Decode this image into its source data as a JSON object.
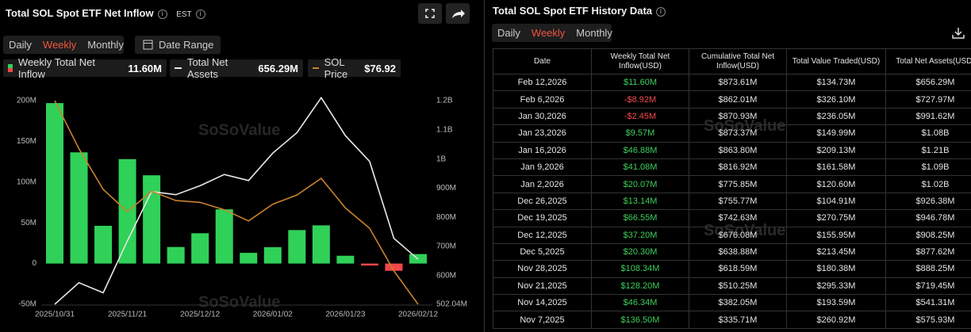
{
  "header": {
    "title": "Total SOL Spot ETF Net Inflow",
    "timezone": "EST",
    "tabs": [
      "Daily",
      "Weekly",
      "Monthly"
    ],
    "active_tab": 1,
    "date_range": "Date Range",
    "legend_values": [
      "11.60M",
      "656.29M",
      "$76.92"
    ]
  },
  "watermark": "SoSoValue",
  "chart_data": {
    "type": "bar",
    "categories": [
      "2025/10/31",
      null,
      null,
      "2025/11/21",
      null,
      null,
      "2025/12/12",
      null,
      null,
      "2026/01/02",
      null,
      null,
      "2026/01/23",
      null,
      null,
      "2026/02/12"
    ],
    "series": [
      {
        "name": "Weekly Total Net Inflow",
        "type": "bar",
        "color": "#30d158",
        "negative_color": "#f0474a",
        "values": [
          197,
          136.5,
          46.34,
          128.2,
          108.34,
          20.3,
          37.2,
          66.55,
          13.14,
          20.07,
          41.08,
          46.88,
          9.57,
          -2.45,
          -8.92,
          11.6
        ]
      },
      {
        "name": "Total Net Assets",
        "type": "line",
        "axis": "y2",
        "color": "#e8e8e8",
        "values": [
          502.04,
          575.93,
          541.31,
          719.45,
          888.25,
          877.62,
          908.25,
          946.78,
          926.38,
          1020,
          1090,
          1210,
          1080,
          991.62,
          727.97,
          656.29
        ]
      },
      {
        "name": "SOL Price",
        "type": "line",
        "axis": "none",
        "color": "#c8832c",
        "values": [
          187,
          161,
          139,
          127,
          138,
          133,
          132,
          128,
          122,
          131,
          136,
          145,
          129,
          118,
          95,
          76.92
        ]
      }
    ],
    "ylim": [
      -50,
      200
    ],
    "yticks": [
      {
        "value": 200,
        "label": "200M"
      },
      {
        "value": 150,
        "label": "150M"
      },
      {
        "value": 100,
        "label": "100M"
      },
      {
        "value": 50,
        "label": "50M"
      },
      0,
      {
        "value": -50,
        "label": "-50M"
      }
    ],
    "y2lim": [
      502.04,
      1200
    ],
    "y2ticks": [
      {
        "value": 1200,
        "label": "1.2B"
      },
      {
        "value": 1100,
        "label": "1.1B"
      },
      {
        "value": 1000,
        "label": "1B"
      },
      {
        "value": 900,
        "label": "900M"
      },
      {
        "value": 800,
        "label": "800M"
      },
      {
        "value": 700,
        "label": "700M"
      },
      {
        "value": 600,
        "label": "600M"
      },
      {
        "value": 502.04,
        "label": "502.04M"
      }
    ],
    "grid": false
  },
  "history": {
    "title": "Total SOL Spot ETF History Data",
    "tabs": [
      "Daily",
      "Weekly",
      "Monthly"
    ],
    "active_tab": 1,
    "table": {
      "columns": [
        "Date",
        "Weekly Total Net Inflow(USD)",
        "Cumulative Total Net Inflow(USD)",
        "Total Value Traded(USD)",
        "Total Net Assets(USD)"
      ],
      "rows": [
        [
          "Feb 12,2026",
          "$11.60M",
          "$873.61M",
          "$134.73M",
          "$656.29M"
        ],
        [
          "Feb 6,2026",
          "-$8.92M",
          "$862.01M",
          "$326.10M",
          "$727.97M"
        ],
        [
          "Jan 30,2026",
          "-$2.45M",
          "$870.93M",
          "$236.05M",
          "$991.62M"
        ],
        [
          "Jan 23,2026",
          "$9.57M",
          "$873.37M",
          "$149.99M",
          "$1.08B"
        ],
        [
          "Jan 16,2026",
          "$46.88M",
          "$863.80M",
          "$209.13M",
          "$1.21B"
        ],
        [
          "Jan 9,2026",
          "$41.08M",
          "$816.92M",
          "$161.58M",
          "$1.09B"
        ],
        [
          "Jan 2,2026",
          "$20.07M",
          "$775.85M",
          "$120.60M",
          "$1.02B"
        ],
        [
          "Dec 26,2025",
          "$13.14M",
          "$755.77M",
          "$104.91M",
          "$926.38M"
        ],
        [
          "Dec 19,2025",
          "$66.55M",
          "$742.63M",
          "$270.75M",
          "$946.78M"
        ],
        [
          "Dec 12,2025",
          "$37.20M",
          "$676.08M",
          "$155.95M",
          "$908.25M"
        ],
        [
          "Dec 5,2025",
          "$20.30M",
          "$638.88M",
          "$213.45M",
          "$877.62M"
        ],
        [
          "Nov 28,2025",
          "$108.34M",
          "$618.59M",
          "$180.38M",
          "$888.25M"
        ],
        [
          "Nov 21,2025",
          "$128.20M",
          "$510.25M",
          "$295.33M",
          "$719.45M"
        ],
        [
          "Nov 14,2025",
          "$46.34M",
          "$382.05M",
          "$193.59M",
          "$541.31M"
        ],
        [
          "Nov 7,2025",
          "$136.50M",
          "$335.71M",
          "$260.92M",
          "$575.93M"
        ]
      ]
    }
  }
}
